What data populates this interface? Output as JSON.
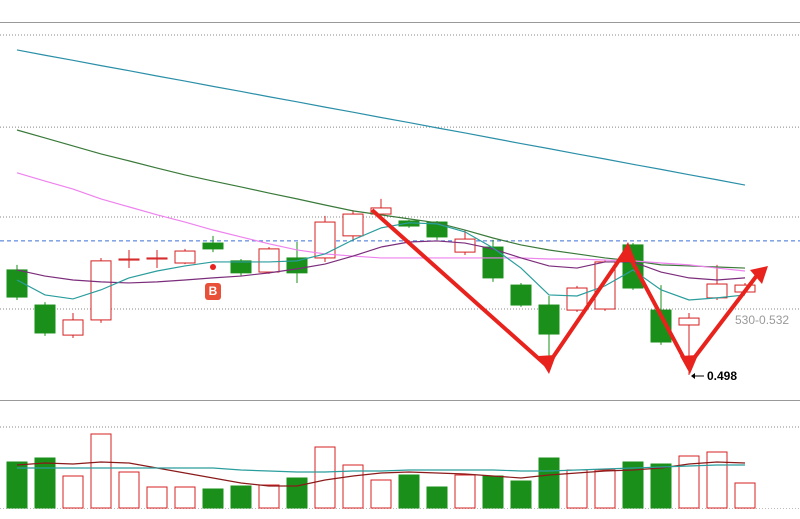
{
  "chart_data": [
    {
      "type": "candlestick",
      "open": [
        0.5375,
        0.5243,
        0.513,
        0.5187,
        0.5412,
        0.5416,
        0.5401,
        0.5476,
        0.5409,
        0.5367,
        0.542,
        0.542,
        0.5503,
        0.5585,
        0.5559,
        0.5555,
        0.5442,
        0.5461,
        0.5318,
        0.5243,
        0.5224,
        0.5228,
        0.5469,
        0.5224,
        0.5168,
        0.527,
        0.5292
      ],
      "high": [
        0.5394,
        0.5254,
        0.5213,
        0.542,
        0.545,
        0.545,
        0.5454,
        0.5503,
        0.5416,
        0.5461,
        0.548,
        0.5578,
        0.56,
        0.5642,
        0.5563,
        0.5559,
        0.5525,
        0.5488,
        0.5326,
        0.5277,
        0.5315,
        0.5412,
        0.5476,
        0.5318,
        0.5213,
        0.5394,
        0.5326
      ],
      "low": [
        0.5262,
        0.5127,
        0.5119,
        0.5176,
        0.5382,
        0.5382,
        0.5397,
        0.5442,
        0.5352,
        0.536,
        0.5326,
        0.5405,
        0.5488,
        0.5578,
        0.5533,
        0.5488,
        0.5431,
        0.533,
        0.5236,
        0.4991,
        0.5217,
        0.5221,
        0.53,
        0.5093,
        0.498,
        0.5262,
        0.5288
      ],
      "close": [
        0.5273,
        0.5138,
        0.5187,
        0.5409,
        0.5416,
        0.542,
        0.5446,
        0.5454,
        0.5364,
        0.5454,
        0.5364,
        0.5555,
        0.5585,
        0.5608,
        0.554,
        0.5499,
        0.5491,
        0.5345,
        0.5243,
        0.5134,
        0.5307,
        0.5405,
        0.5307,
        0.5104,
        0.5194,
        0.5322,
        0.5318
      ],
      "up_color": "#d42020",
      "down_color": "#1a8f1a",
      "ylim": [
        0.4886,
        0.6307
      ],
      "gridlines": [
        0.6258,
        0.5912,
        0.5574,
        0.5228
      ],
      "reference_line": 0.5484,
      "lines": [
        {
          "color": "#2a8fa8",
          "values": [
            0.6202,
            0.6182,
            0.6163,
            0.6143,
            0.6124,
            0.6104,
            0.6085,
            0.6065,
            0.6046,
            0.6026,
            0.6007,
            0.5987,
            0.5968,
            0.5948,
            0.5929,
            0.5909,
            0.589,
            0.587,
            0.585,
            0.5831,
            0.5811,
            0.5792,
            0.5772,
            0.5753,
            0.5733,
            0.5714,
            0.5694
          ]
        },
        {
          "color": "#3a7a3a",
          "values": [
            0.5901,
            0.5871,
            0.5841,
            0.5811,
            0.5785,
            0.5758,
            0.5732,
            0.5709,
            0.5687,
            0.5664,
            0.5642,
            0.5619,
            0.5597,
            0.5582,
            0.5567,
            0.5552,
            0.5525,
            0.5495,
            0.5469,
            0.545,
            0.5435,
            0.542,
            0.5409,
            0.5394,
            0.539,
            0.5386,
            0.5382
          ]
        },
        {
          "color": "#ee82ee",
          "values": [
            0.574,
            0.5709,
            0.5679,
            0.5642,
            0.5612,
            0.5582,
            0.5555,
            0.5525,
            0.5499,
            0.5473,
            0.545,
            0.5435,
            0.5427,
            0.542,
            0.542,
            0.542,
            0.542,
            0.542,
            0.542,
            0.5416,
            0.5416,
            0.5412,
            0.5409,
            0.5401,
            0.5394,
            0.5382,
            0.5371
          ]
        },
        {
          "color": "#7b2d7b",
          "values": [
            0.5375,
            0.5352,
            0.5337,
            0.533,
            0.5326,
            0.533,
            0.5337,
            0.5345,
            0.5352,
            0.5364,
            0.5379,
            0.5397,
            0.5427,
            0.5461,
            0.548,
            0.5484,
            0.5476,
            0.5454,
            0.542,
            0.539,
            0.5382,
            0.5405,
            0.5405,
            0.5367,
            0.5345,
            0.5337,
            0.5345
          ]
        },
        {
          "color": "#2a9d9d",
          "values": [
            0.5337,
            0.5281,
            0.5266,
            0.53,
            0.5345,
            0.5371,
            0.539,
            0.5405,
            0.5405,
            0.5405,
            0.5409,
            0.5435,
            0.5488,
            0.5533,
            0.5552,
            0.5548,
            0.5518,
            0.5458,
            0.5382,
            0.5281,
            0.5277,
            0.5315,
            0.5375,
            0.53,
            0.5262,
            0.527,
            0.5281
          ]
        }
      ],
      "low_label": 0.498,
      "price_label": "530-0.532",
      "signal": "B"
    },
    {
      "type": "bar",
      "values": [
        46,
        50,
        32,
        74,
        36,
        21,
        21,
        19,
        22,
        23,
        30,
        61,
        43,
        28,
        33,
        21,
        33,
        32,
        27,
        50,
        38,
        38,
        46,
        44,
        52,
        56,
        25
      ],
      "ylim": [
        0,
        100
      ],
      "gridlines": [
        81
      ],
      "lines": [
        {
          "color": "#8b1a1a",
          "values": [
            43,
            45,
            44,
            46,
            45,
            40,
            35,
            30,
            25,
            22,
            22,
            28,
            32,
            35,
            36,
            35,
            34,
            32,
            30,
            33,
            35,
            37,
            38,
            40,
            44,
            46,
            45
          ]
        },
        {
          "color": "#2a9d9d",
          "values": [
            40,
            40,
            40,
            40,
            40,
            40,
            40,
            40,
            38,
            37,
            36,
            36,
            37,
            37,
            38,
            38,
            38,
            38,
            37,
            37,
            38,
            39,
            40,
            41,
            42,
            43,
            43
          ]
        }
      ]
    }
  ]
}
